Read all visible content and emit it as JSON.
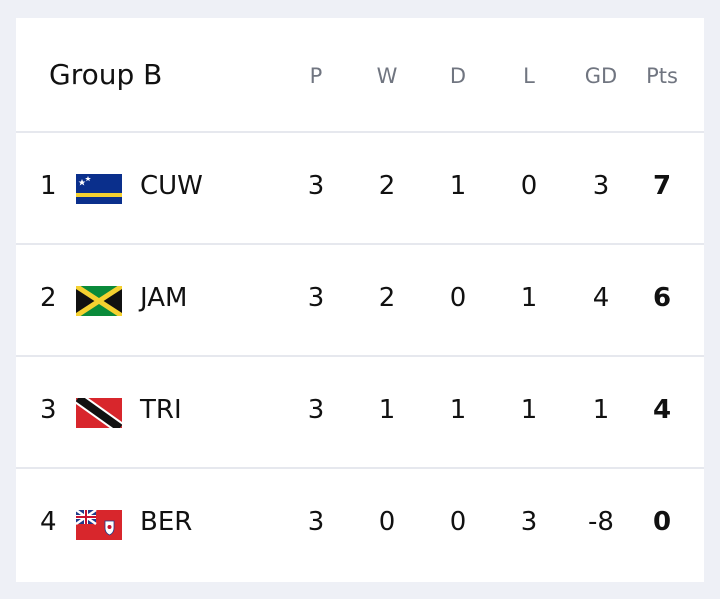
{
  "table": {
    "title": "Group B",
    "columns": [
      "P",
      "W",
      "D",
      "L",
      "GD",
      "Pts"
    ],
    "rows": [
      {
        "rank": 1,
        "team": "CUW",
        "stats": [
          3,
          2,
          1,
          0,
          3,
          7
        ]
      },
      {
        "rank": 2,
        "team": "JAM",
        "stats": [
          3,
          2,
          0,
          1,
          4,
          6
        ]
      },
      {
        "rank": 3,
        "team": "TRI",
        "stats": [
          3,
          1,
          1,
          1,
          1,
          4
        ]
      },
      {
        "rank": 4,
        "team": "BER",
        "stats": [
          3,
          0,
          0,
          3,
          -8,
          0
        ]
      }
    ]
  }
}
